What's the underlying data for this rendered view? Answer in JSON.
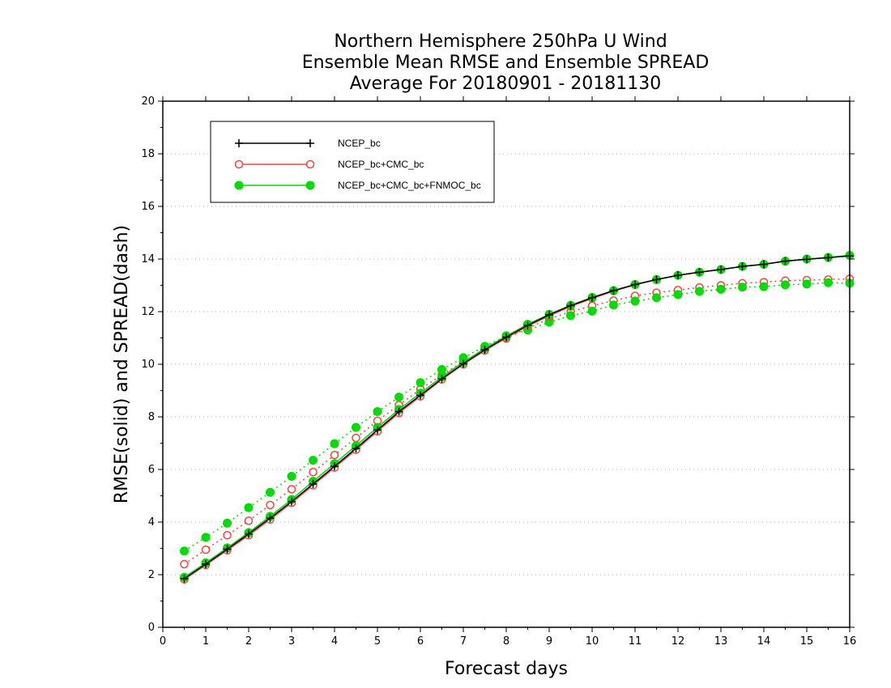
{
  "chart_data": {
    "type": "line",
    "title": [
      "Northern Hemisphere 250hPa U Wind",
      "Ensemble Mean RMSE and Ensemble SPREAD",
      "Average For 20180901 - 20181130"
    ],
    "xlabel": "Forecast days",
    "ylabel": "RMSE(solid) and SPREAD(dash)",
    "xlim": [
      0,
      16
    ],
    "ylim": [
      0,
      20
    ],
    "xticks": [
      0,
      1,
      2,
      3,
      4,
      5,
      6,
      7,
      8,
      9,
      10,
      11,
      12,
      13,
      14,
      15,
      16
    ],
    "yticks": [
      0,
      2,
      4,
      6,
      8,
      10,
      12,
      14,
      16,
      18,
      20
    ],
    "grid": "horizontal dotted",
    "legend_position": "top-left",
    "x": [
      0.5,
      1,
      1.5,
      2,
      2.5,
      3,
      3.5,
      4,
      4.5,
      5,
      5.5,
      6,
      6.5,
      7,
      7.5,
      8,
      8.5,
      9,
      9.5,
      10,
      10.5,
      11,
      11.5,
      12,
      12.5,
      13,
      13.5,
      14,
      14.5,
      15,
      15.5,
      16
    ],
    "series": [
      {
        "name": "NCEP_bc",
        "color": "#000000",
        "marker": "plus",
        "style": "solid",
        "metric": "RMSE",
        "values": [
          1.85,
          2.4,
          2.97,
          3.55,
          4.15,
          4.78,
          5.45,
          6.12,
          6.8,
          7.5,
          8.2,
          8.82,
          9.45,
          10.02,
          10.55,
          11.03,
          11.48,
          11.88,
          12.23,
          12.53,
          12.8,
          13.03,
          13.22,
          13.38,
          13.5,
          13.6,
          13.72,
          13.8,
          13.92,
          13.99,
          14.05,
          14.12
        ]
      },
      {
        "name": "NCEP_bc+CMC_bc",
        "color": "#ff4040",
        "marker": "open-circle",
        "style": "solid",
        "metric": "RMSE",
        "values": [
          1.82,
          2.37,
          2.93,
          3.5,
          4.1,
          4.73,
          5.4,
          6.07,
          6.75,
          7.45,
          8.15,
          8.78,
          9.42,
          10.0,
          10.52,
          11.0,
          11.45,
          11.84,
          12.2,
          12.5,
          12.78,
          13.02,
          13.22,
          13.38,
          13.5,
          13.6,
          13.72,
          13.8,
          13.92,
          14.0,
          14.06,
          14.13
        ]
      },
      {
        "name": "NCEP_bc+CMC_bc+FNMOC_bc",
        "color": "#00dd00",
        "marker": "filled-circle",
        "style": "solid",
        "metric": "RMSE",
        "values": [
          1.9,
          2.45,
          3.02,
          3.6,
          4.22,
          4.86,
          5.55,
          6.22,
          6.9,
          7.6,
          8.28,
          8.9,
          9.52,
          10.08,
          10.6,
          11.07,
          11.52,
          11.9,
          12.24,
          12.54,
          12.8,
          13.03,
          13.22,
          13.38,
          13.5,
          13.6,
          13.72,
          13.8,
          13.92,
          14.0,
          14.06,
          14.14
        ]
      },
      {
        "name": "NCEP_bc+CMC_bc",
        "color": "#ff4040",
        "marker": "open-circle",
        "style": "dotted",
        "metric": "SPREAD",
        "values": [
          2.4,
          2.95,
          3.5,
          4.05,
          4.65,
          5.25,
          5.9,
          6.55,
          7.2,
          7.85,
          8.45,
          9.05,
          9.6,
          10.1,
          10.55,
          10.98,
          11.38,
          11.72,
          12.0,
          12.22,
          12.42,
          12.6,
          12.72,
          12.82,
          12.92,
          13.0,
          13.08,
          13.12,
          13.18,
          13.2,
          13.22,
          13.25
        ]
      },
      {
        "name": "NCEP_bc+CMC_bc+FNMOC_bc",
        "color": "#00dd00",
        "marker": "filled-circle",
        "style": "dotted",
        "metric": "SPREAD",
        "values": [
          2.9,
          3.42,
          3.96,
          4.55,
          5.13,
          5.74,
          6.35,
          6.98,
          7.6,
          8.2,
          8.75,
          9.3,
          9.8,
          10.25,
          10.68,
          11.08,
          11.3,
          11.6,
          11.85,
          12.02,
          12.25,
          12.4,
          12.53,
          12.65,
          12.77,
          12.85,
          12.93,
          12.95,
          13.02,
          13.05,
          13.1,
          13.08
        ]
      }
    ]
  }
}
